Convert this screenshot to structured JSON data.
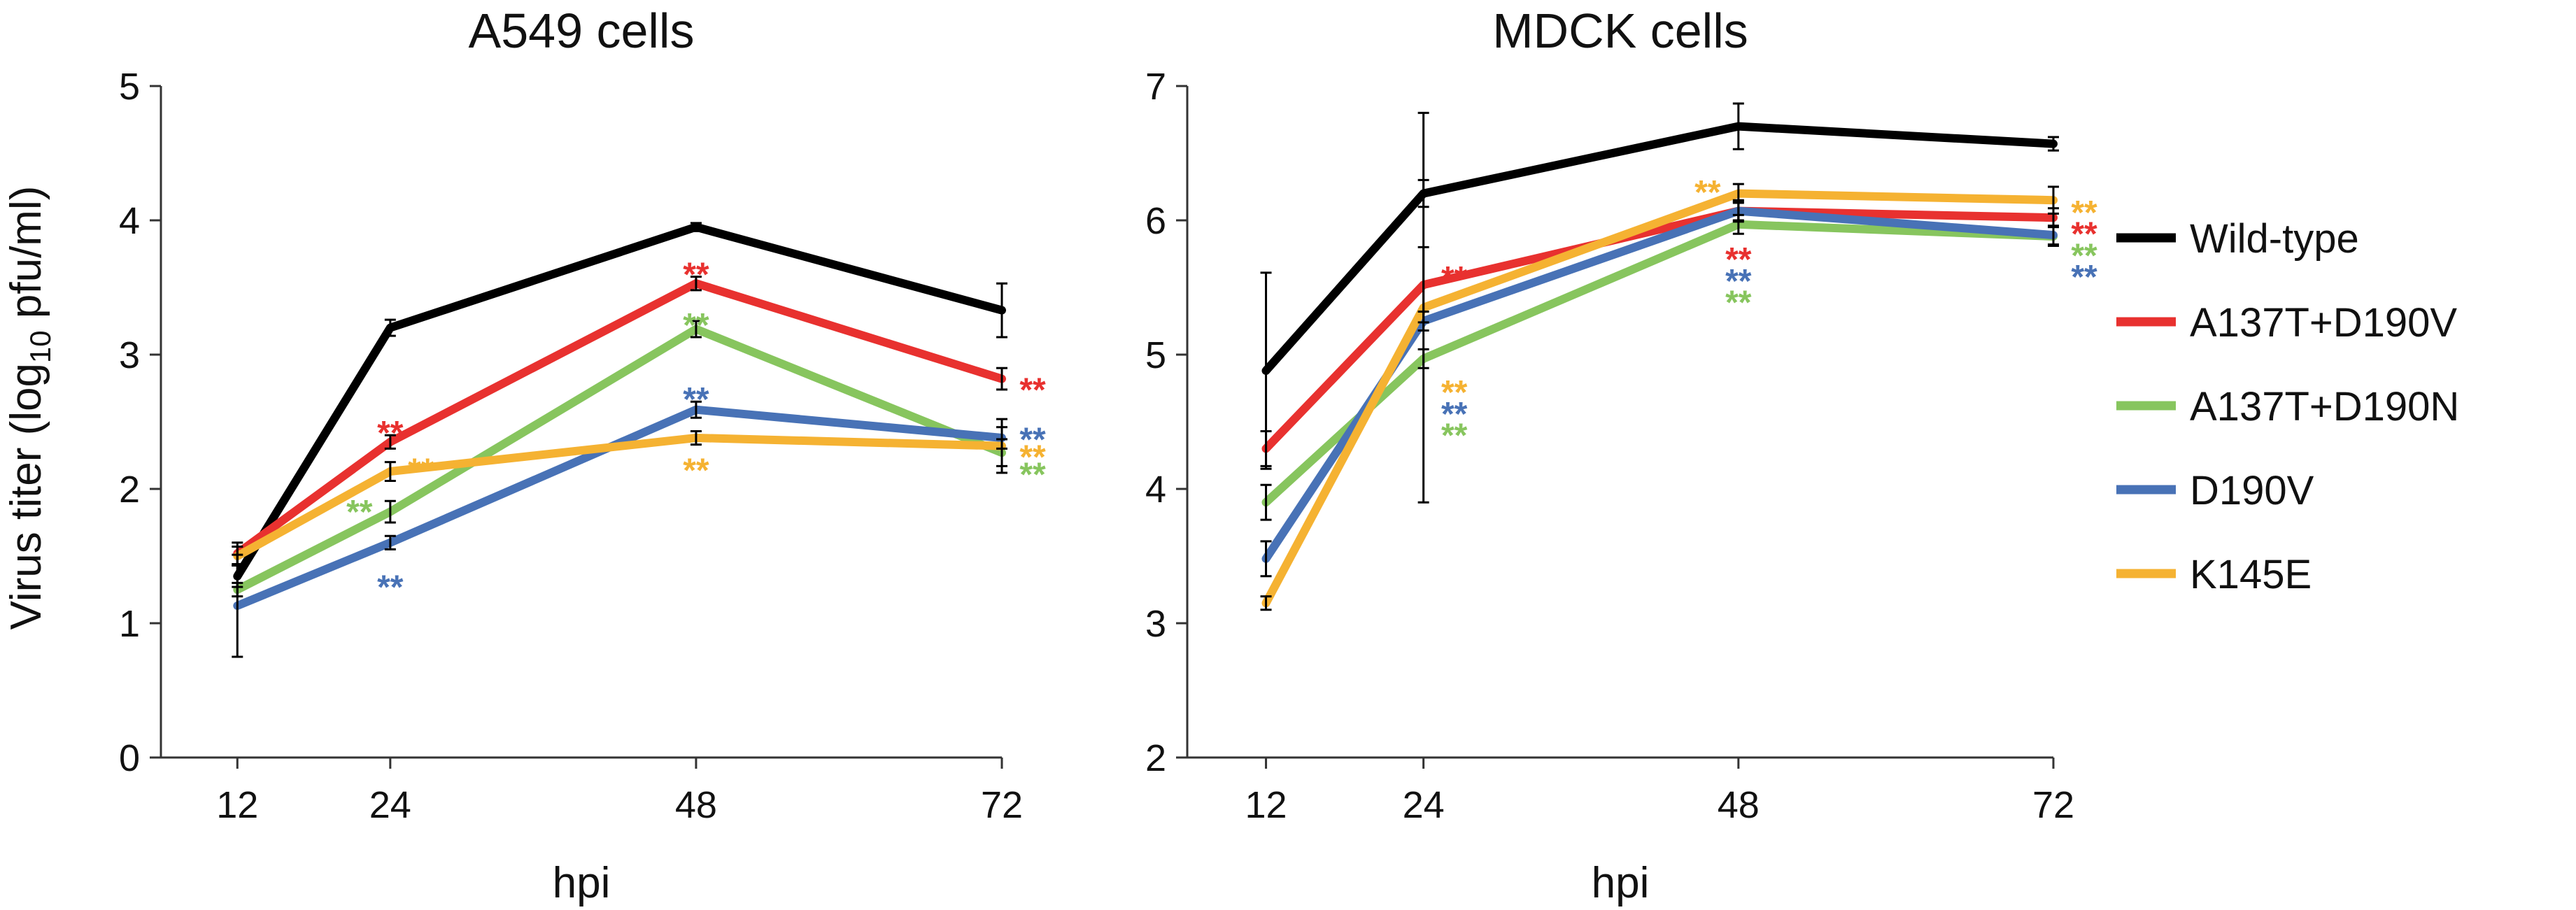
{
  "figure": {
    "ylabel": {
      "prefix": "Virus titer (log",
      "subscript": "10",
      "suffix": "  pfu/ml)"
    }
  },
  "legend": [
    {
      "name": "Wild-type",
      "color": "#000000"
    },
    {
      "name": "A137T+D190V",
      "color": "#e8312f"
    },
    {
      "name": "A137T+D190N",
      "color": "#87c55e"
    },
    {
      "name": "D190V",
      "color": "#4872b6"
    },
    {
      "name": "K145E",
      "color": "#f5b232"
    }
  ],
  "chart_data": [
    {
      "type": "line",
      "title": "A549 cells",
      "xlabel": "hpi",
      "ylabel": "Virus titer (log10 pfu/ml)",
      "x": [
        12,
        24,
        48,
        72
      ],
      "xticks": [
        "12",
        "24",
        "48",
        "72"
      ],
      "xlim": [
        6,
        72
      ],
      "ylim": [
        0,
        5
      ],
      "yticks": [
        "0",
        "1",
        "2",
        "3",
        "4",
        "5"
      ],
      "series": [
        {
          "name": "Wild-type",
          "color": "#000000",
          "values": [
            1.35,
            3.2,
            3.95,
            3.33
          ],
          "errors": [
            0.08,
            0.06,
            0.03,
            0.2
          ]
        },
        {
          "name": "A137T+D190V",
          "color": "#e8312f",
          "values": [
            1.52,
            2.35,
            3.53,
            2.82
          ],
          "errors": [
            0.08,
            0.05,
            0.05,
            0.08
          ]
        },
        {
          "name": "A137T+D190N",
          "color": "#87c55e",
          "values": [
            1.25,
            1.83,
            3.19,
            2.27
          ],
          "errors": [
            0.05,
            0.08,
            0.06,
            0.1
          ]
        },
        {
          "name": "D190V",
          "color": "#4872b6",
          "values": [
            1.13,
            1.6,
            2.59,
            2.38
          ],
          "errors": [
            0.38,
            0.05,
            0.06,
            0.08
          ]
        },
        {
          "name": "K145E",
          "color": "#f5b232",
          "values": [
            1.5,
            2.13,
            2.38,
            2.32
          ],
          "errors": [
            0.07,
            0.07,
            0.05,
            0.2
          ]
        }
      ],
      "annotations": [
        {
          "text": "**",
          "x": 24,
          "y": 2.48,
          "color": "#e8312f"
        },
        {
          "text": "**",
          "x": 24,
          "y": 2.2,
          "color": "#f5b232",
          "dx": 1
        },
        {
          "text": "**",
          "x": 24,
          "y": 1.89,
          "color": "#87c55e",
          "dx": -1
        },
        {
          "text": "**",
          "x": 24,
          "y": 1.33,
          "color": "#4872b6"
        },
        {
          "text": "**",
          "x": 48,
          "y": 3.66,
          "color": "#e8312f"
        },
        {
          "text": "**",
          "x": 48,
          "y": 3.28,
          "color": "#87c55e"
        },
        {
          "text": "**",
          "x": 48,
          "y": 2.73,
          "color": "#4872b6"
        },
        {
          "text": "**",
          "x": 48,
          "y": 2.2,
          "color": "#f5b232"
        },
        {
          "text": "**",
          "x": 72,
          "y": 2.8,
          "color": "#e8312f",
          "dx": 1
        },
        {
          "text": "**",
          "x": 72,
          "y": 2.43,
          "color": "#4872b6",
          "dx": 1
        },
        {
          "text": "**",
          "x": 72,
          "y": 2.3,
          "color": "#f5b232",
          "dx": 1
        },
        {
          "text": "**",
          "x": 72,
          "y": 2.17,
          "color": "#87c55e",
          "dx": 1
        }
      ]
    },
    {
      "type": "line",
      "title": "MDCK cells",
      "xlabel": "hpi",
      "ylabel": "",
      "x": [
        12,
        24,
        48,
        72
      ],
      "xticks": [
        "12",
        "24",
        "48",
        "72"
      ],
      "xlim": [
        6,
        72
      ],
      "ylim": [
        2,
        7
      ],
      "yticks": [
        "2",
        "3",
        "4",
        "5",
        "6",
        "7"
      ],
      "series": [
        {
          "name": "Wild-type",
          "color": "#000000",
          "values": [
            4.88,
            6.2,
            6.7,
            6.57
          ],
          "errors": [
            0.73,
            0.1,
            0.17,
            0.05
          ]
        },
        {
          "name": "A137T+D190V",
          "color": "#e8312f",
          "values": [
            4.3,
            5.52,
            6.07,
            6.02
          ],
          "errors": [
            0.13,
            0.28,
            0.08,
            0.07
          ]
        },
        {
          "name": "A137T+D190N",
          "color": "#87c55e",
          "values": [
            3.9,
            4.97,
            5.97,
            5.88
          ],
          "errors": [
            0.13,
            0.07,
            0.07,
            0.07
          ]
        },
        {
          "name": "D190V",
          "color": "#4872b6",
          "values": [
            3.48,
            5.25,
            6.07,
            5.89
          ],
          "errors": [
            0.13,
            0.07,
            0.07,
            0.07
          ]
        },
        {
          "name": "K145E",
          "color": "#f5b232",
          "values": [
            3.15,
            5.35,
            6.2,
            6.15
          ],
          "errors": [
            0.05,
            1.45,
            0.07,
            0.1
          ]
        }
      ],
      "annotations": [
        {
          "text": "**",
          "x": 24,
          "y": 5.63,
          "color": "#e8312f",
          "dx": 1
        },
        {
          "text": "**",
          "x": 24,
          "y": 4.78,
          "color": "#f5b232",
          "dx": 1
        },
        {
          "text": "**",
          "x": 24,
          "y": 4.62,
          "color": "#4872b6",
          "dx": 1
        },
        {
          "text": "**",
          "x": 24,
          "y": 4.46,
          "color": "#87c55e",
          "dx": 1
        },
        {
          "text": "**",
          "x": 48,
          "y": 6.27,
          "color": "#f5b232",
          "dx": -1
        },
        {
          "text": "**",
          "x": 48,
          "y": 5.77,
          "color": "#e8312f"
        },
        {
          "text": "**",
          "x": 48,
          "y": 5.61,
          "color": "#4872b6"
        },
        {
          "text": "**",
          "x": 48,
          "y": 5.45,
          "color": "#87c55e"
        },
        {
          "text": "**",
          "x": 72,
          "y": 6.12,
          "color": "#f5b232",
          "dx": 1
        },
        {
          "text": "**",
          "x": 72,
          "y": 5.96,
          "color": "#e8312f",
          "dx": 1
        },
        {
          "text": "**",
          "x": 72,
          "y": 5.8,
          "color": "#87c55e",
          "dx": 1
        },
        {
          "text": "**",
          "x": 72,
          "y": 5.64,
          "color": "#4872b6",
          "dx": 1
        }
      ]
    }
  ]
}
